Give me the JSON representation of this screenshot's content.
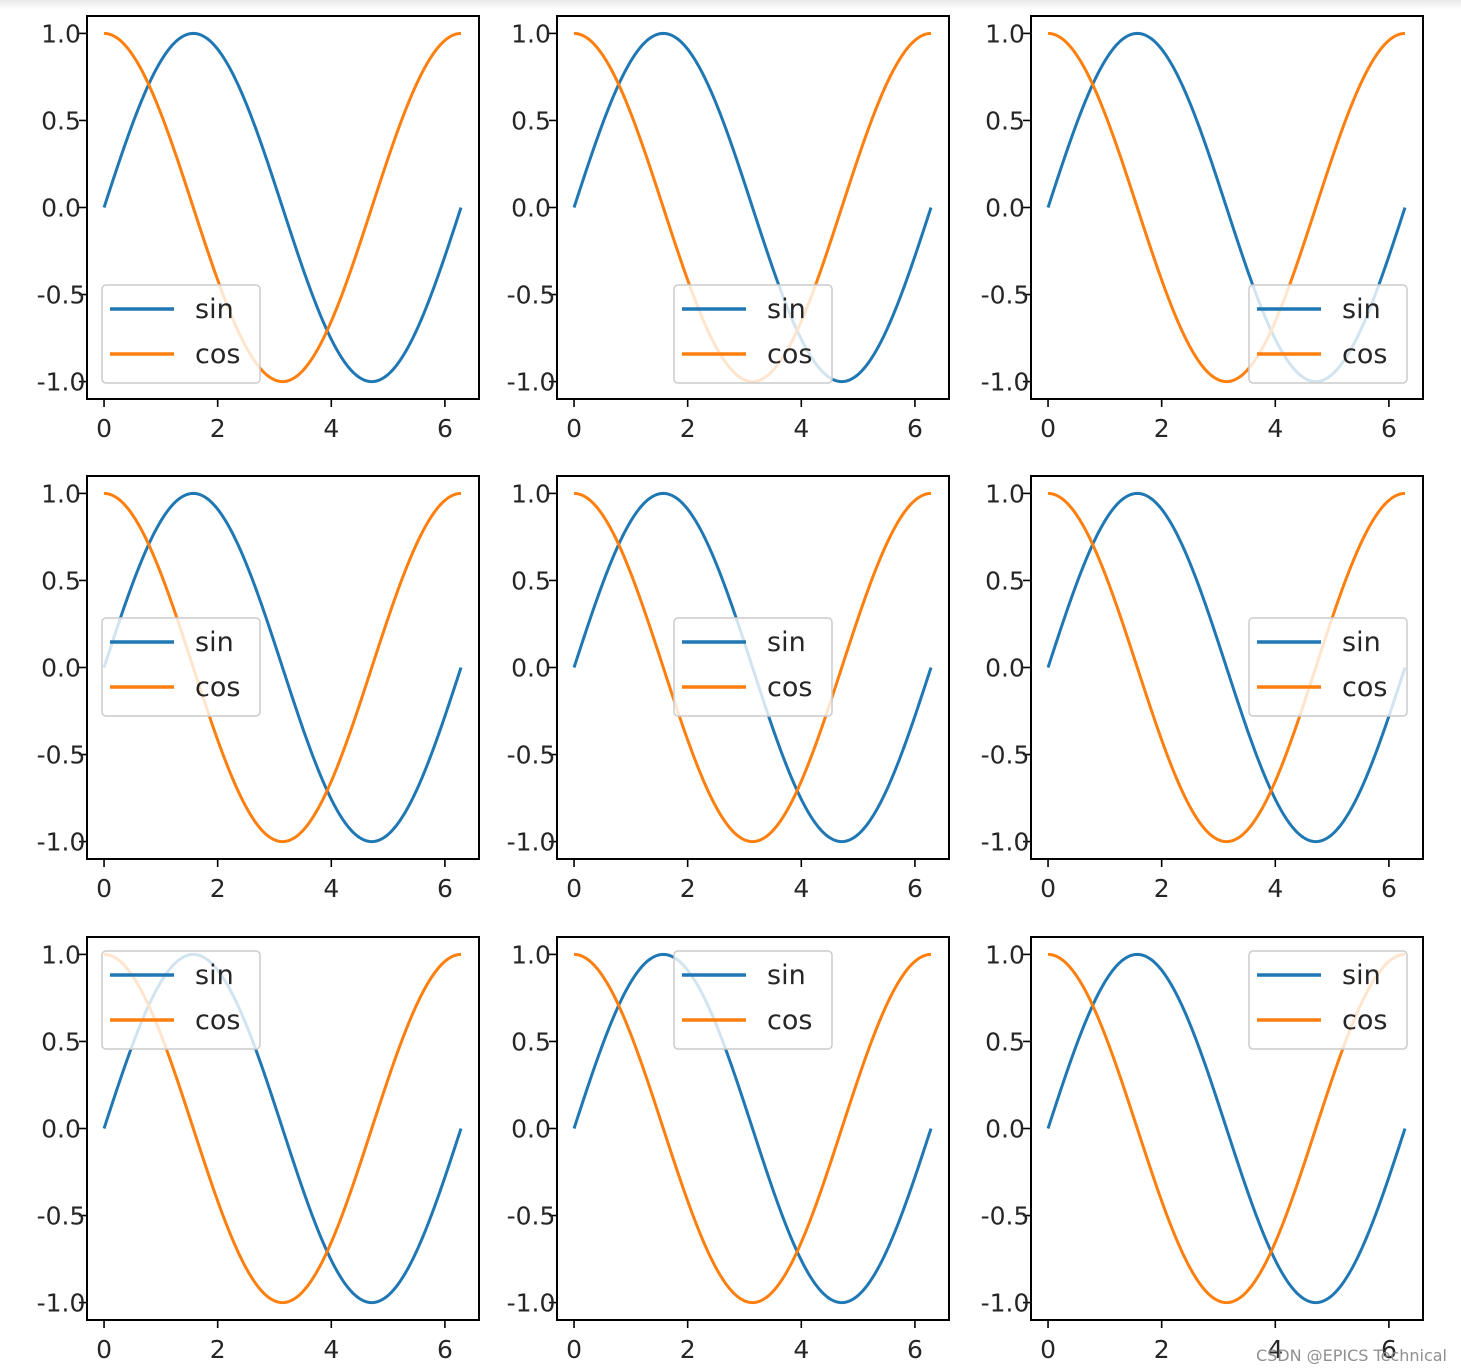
{
  "chart_data": {
    "type": "line",
    "layout": "3x3 grid of identical subplots",
    "x_domain": [
      0,
      6.283
    ],
    "xlim": [
      -0.3,
      6.6
    ],
    "ylim": [
      -1.1,
      1.1
    ],
    "xticks": [
      0,
      2,
      4,
      6
    ],
    "yticks": [
      1.0,
      0.5,
      0.0,
      -0.5,
      -1.0
    ],
    "xtick_labels": [
      "0",
      "2",
      "4",
      "6"
    ],
    "ytick_labels": [
      "1.0",
      "0.5",
      "0.0",
      "-0.5",
      "-1.0"
    ],
    "grid": false,
    "series": [
      {
        "name": "sin",
        "function": "sin(x)",
        "color": "#1f77b4"
      },
      {
        "name": "cos",
        "function": "cos(x)",
        "color": "#ff7f0e"
      }
    ],
    "subplots": [
      {
        "legend_loc": "lower left"
      },
      {
        "legend_loc": "lower center"
      },
      {
        "legend_loc": "lower right"
      },
      {
        "legend_loc": "center left"
      },
      {
        "legend_loc": "center"
      },
      {
        "legend_loc": "center right"
      },
      {
        "legend_loc": "upper left"
      },
      {
        "legend_loc": "upper center"
      },
      {
        "legend_loc": "upper right"
      }
    ]
  },
  "watermark": "CSDN @EPICS Technical"
}
